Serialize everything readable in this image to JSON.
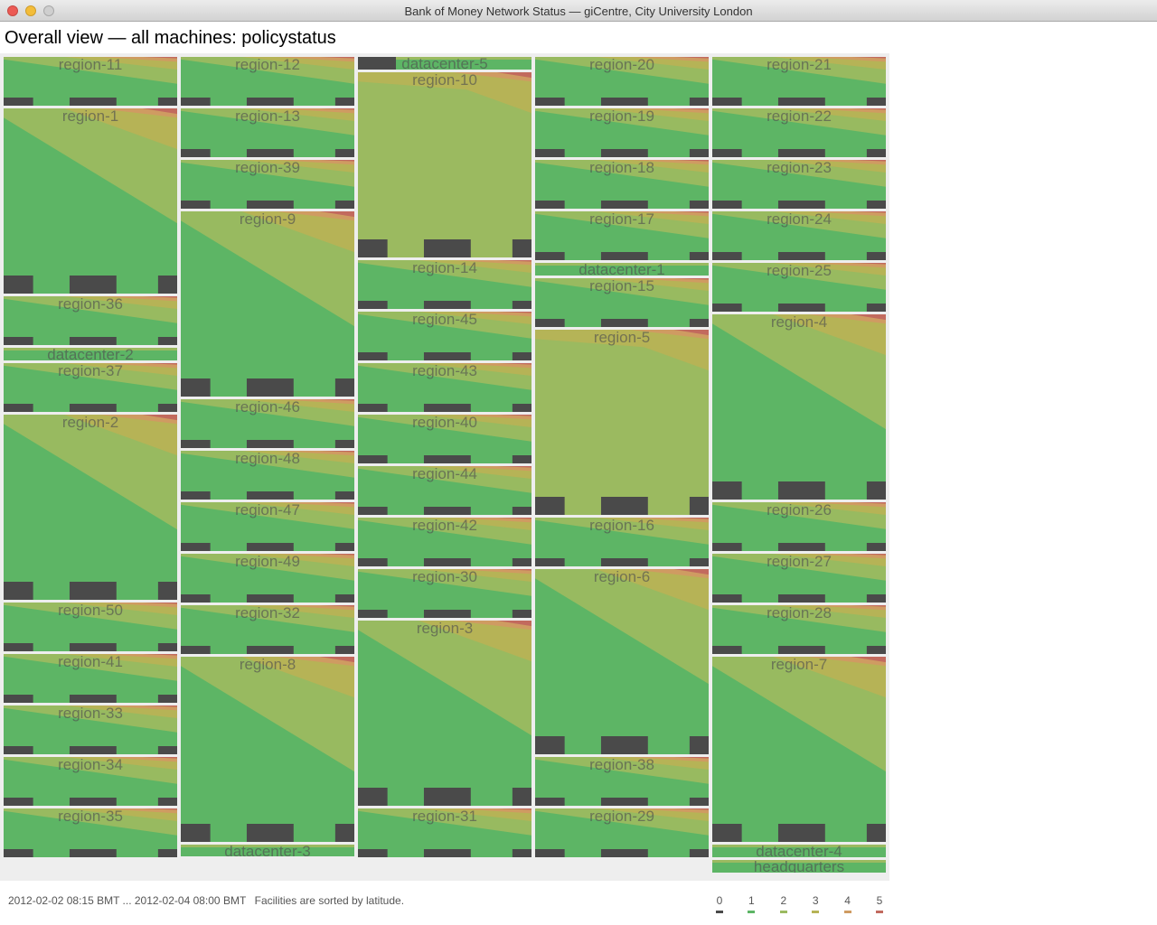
{
  "window": {
    "title": "Bank of Money Network Status — giCentre, City University London"
  },
  "heading": "Overall view — all machines: policystatus",
  "status": {
    "time_range": "2012-02-02 08:15 BMT ... 2012-02-04 08:00 BMT",
    "note": "Facilities are sorted by latitude."
  },
  "colors": {
    "background": "#eeeeee",
    "offline": "#4a4a4a",
    "status_1": "#5db565",
    "status_2": "#9bba60",
    "status_3": "#b6b356",
    "status_4": "#cf9b62",
    "status_5": "#c26a5e"
  },
  "legend": [
    {
      "label": "0",
      "color": "#4a4a4a"
    },
    {
      "label": "1",
      "color": "#5db565"
    },
    {
      "label": "2",
      "color": "#9bba60"
    },
    {
      "label": "3",
      "color": "#b6b356"
    },
    {
      "label": "4",
      "color": "#cf9b62"
    },
    {
      "label": "5",
      "color": "#c26a5e"
    }
  ],
  "columns": [
    {
      "facilities": [
        {
          "name": "region-11",
          "mode": "g"
        },
        {
          "name": "region-1",
          "mode": "G"
        },
        {
          "name": "region-36",
          "mode": "g"
        },
        {
          "name": "datacenter-2",
          "mode": "d"
        },
        {
          "name": "region-37",
          "mode": "g"
        },
        {
          "name": "region-2",
          "mode": "G"
        },
        {
          "name": "region-50",
          "mode": "g"
        },
        {
          "name": "region-41",
          "mode": "g"
        },
        {
          "name": "region-33",
          "mode": "g"
        },
        {
          "name": "region-34",
          "mode": "g"
        },
        {
          "name": "region-35",
          "mode": "g"
        }
      ]
    },
    {
      "facilities": [
        {
          "name": "region-12",
          "mode": "g"
        },
        {
          "name": "region-13",
          "mode": "g"
        },
        {
          "name": "region-39",
          "mode": "g"
        },
        {
          "name": "region-9",
          "mode": "G"
        },
        {
          "name": "region-46",
          "mode": "g"
        },
        {
          "name": "region-48",
          "mode": "g"
        },
        {
          "name": "region-47",
          "mode": "g"
        },
        {
          "name": "region-49",
          "mode": "g"
        },
        {
          "name": "region-32",
          "mode": "g"
        },
        {
          "name": "region-8",
          "mode": "G"
        },
        {
          "name": "datacenter-3",
          "mode": "d"
        }
      ]
    },
    {
      "facilities": [
        {
          "name": "datacenter-5",
          "mode": "d"
        },
        {
          "name": "region-10",
          "mode": "O"
        },
        {
          "name": "region-14",
          "mode": "g"
        },
        {
          "name": "region-45",
          "mode": "g"
        },
        {
          "name": "region-43",
          "mode": "g"
        },
        {
          "name": "region-40",
          "mode": "g"
        },
        {
          "name": "region-44",
          "mode": "g"
        },
        {
          "name": "region-42",
          "mode": "g"
        },
        {
          "name": "region-30",
          "mode": "g"
        },
        {
          "name": "region-3",
          "mode": "G"
        },
        {
          "name": "region-31",
          "mode": "g"
        }
      ]
    },
    {
      "facilities": [
        {
          "name": "region-20",
          "mode": "g"
        },
        {
          "name": "region-19",
          "mode": "g"
        },
        {
          "name": "region-18",
          "mode": "g"
        },
        {
          "name": "region-17",
          "mode": "g"
        },
        {
          "name": "datacenter-1",
          "mode": "d"
        },
        {
          "name": "region-15",
          "mode": "g"
        },
        {
          "name": "region-5",
          "mode": "O"
        },
        {
          "name": "region-16",
          "mode": "g"
        },
        {
          "name": "region-6",
          "mode": "G"
        },
        {
          "name": "region-38",
          "mode": "g"
        },
        {
          "name": "region-29",
          "mode": "g"
        }
      ]
    },
    {
      "facilities": [
        {
          "name": "region-21",
          "mode": "g"
        },
        {
          "name": "region-22",
          "mode": "g"
        },
        {
          "name": "region-23",
          "mode": "g"
        },
        {
          "name": "region-24",
          "mode": "g"
        },
        {
          "name": "region-25",
          "mode": "g"
        },
        {
          "name": "region-4",
          "mode": "G"
        },
        {
          "name": "region-26",
          "mode": "g"
        },
        {
          "name": "region-27",
          "mode": "g"
        },
        {
          "name": "region-28",
          "mode": "g"
        },
        {
          "name": "region-7",
          "mode": "G"
        },
        {
          "name": "datacenter-4",
          "mode": "d"
        },
        {
          "name": "headquarters",
          "mode": "d"
        }
      ]
    }
  ]
}
